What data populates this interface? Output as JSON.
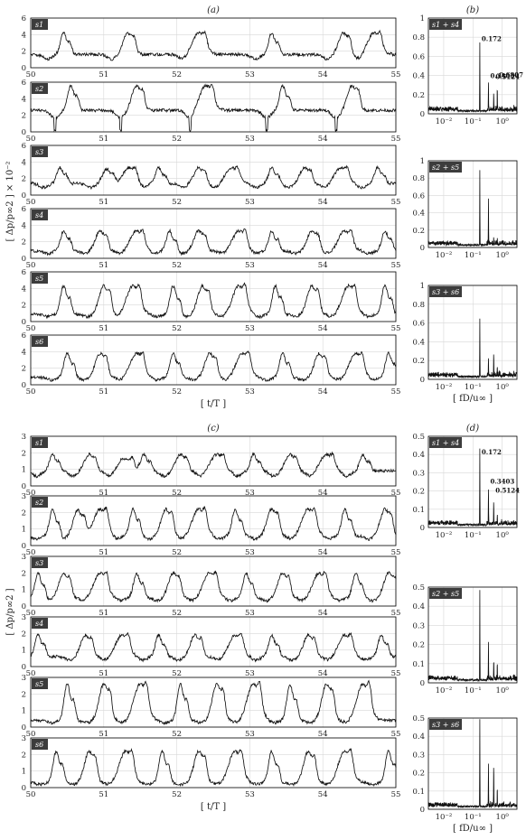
{
  "chart_data": [
    {
      "panel": "a",
      "title": "(a)",
      "type": "line",
      "xlabel": "[ t/T ]",
      "ylabel": "[ Δp/p∞2 ] × 10⁻²",
      "xlim": [
        50,
        55
      ],
      "xticks": [
        50,
        51,
        52,
        53,
        54,
        55
      ],
      "grid": true,
      "series": [
        {
          "name": "s1",
          "ylim": [
            0,
            6
          ],
          "yticks": [
            0,
            2,
            4,
            6
          ],
          "peak_times": [
            50.45,
            51.33,
            52.3,
            53.3,
            54.28,
            54.7
          ],
          "base": 1.6,
          "peak": 4.2
        },
        {
          "name": "s2",
          "ylim": [
            0,
            6
          ],
          "yticks": [
            0,
            2,
            4,
            6
          ],
          "peak_times": [
            50.55,
            51.45,
            52.4,
            53.45,
            54.4
          ],
          "base": 2.6,
          "peak": 5.6,
          "dips_to": 0.0
        },
        {
          "name": "s3",
          "ylim": [
            0,
            6
          ],
          "yticks": [
            0,
            2,
            4,
            6
          ],
          "peak_times": [
            50.4,
            51.05,
            51.35,
            51.75,
            52.3,
            52.75,
            53.3,
            53.75,
            54.25,
            54.75
          ],
          "base": 1.4,
          "peak": 3.3
        },
        {
          "name": "s4",
          "ylim": [
            0,
            6
          ],
          "yticks": [
            0,
            2,
            4,
            6
          ],
          "peak_times": [
            50.45,
            50.95,
            51.45,
            51.9,
            52.3,
            52.85,
            53.3,
            53.85,
            54.3,
            54.85
          ],
          "base": 0.9,
          "peak": 3.3
        },
        {
          "name": "s5",
          "ylim": [
            0,
            6
          ],
          "yticks": [
            0,
            2,
            4,
            6
          ],
          "peak_times": [
            50.45,
            51.0,
            51.4,
            51.95,
            52.35,
            52.85,
            53.35,
            53.85,
            54.35,
            54.85
          ],
          "base": 0.9,
          "peak": 4.3
        },
        {
          "name": "s6",
          "ylim": [
            0,
            6
          ],
          "yticks": [
            0,
            2,
            4,
            6
          ],
          "peak_times": [
            50.5,
            50.95,
            51.45,
            51.95,
            52.45,
            52.9,
            53.45,
            53.95,
            54.45,
            54.9
          ],
          "base": 0.9,
          "peak": 3.8
        }
      ]
    },
    {
      "panel": "b",
      "title": "(b)",
      "type": "line",
      "xscale": "log",
      "xlabel": "[ fD/u∞ ]",
      "xticks": [
        "10⁻²",
        "10⁻¹",
        "10⁰"
      ],
      "ylim": [
        0,
        1
      ],
      "yticks": [
        0,
        0.2,
        0.4,
        0.6,
        0.8,
        1
      ],
      "grid": true,
      "series": [
        {
          "name": "s1 + s4",
          "peaks": [
            [
              0.172,
              0.72
            ],
            [
              0.3403,
              0.28
            ],
            [
              0.5124,
              0.18
            ],
            [
              0.6807,
              0.24
            ]
          ],
          "peak_labels": [
            "0.172",
            "0.3403",
            "0.5124",
            "0.6807"
          ]
        },
        {
          "name": "s2 + s5",
          "peaks": [
            [
              0.172,
              0.87
            ],
            [
              0.3403,
              0.49
            ],
            [
              0.5124,
              0.08
            ],
            [
              0.6807,
              0.07
            ]
          ]
        },
        {
          "name": "s3 + s6",
          "peaks": [
            [
              0.172,
              0.62
            ],
            [
              0.3403,
              0.2
            ],
            [
              0.5124,
              0.25
            ],
            [
              0.6807,
              0.1
            ]
          ]
        }
      ]
    },
    {
      "panel": "c",
      "title": "(c)",
      "type": "line",
      "xlabel": "[ t/T ]",
      "ylabel": "[ Δp/p∞2 ]",
      "xlim": [
        50,
        55
      ],
      "xticks": [
        50,
        51,
        52,
        53,
        54,
        55
      ],
      "grid": true,
      "series": [
        {
          "name": "s1",
          "ylim": [
            0,
            3
          ],
          "yticks": [
            0,
            1,
            2,
            3
          ],
          "peak_times": [
            50.3,
            50.8,
            51.3,
            51.55,
            52.05,
            52.55,
            53.05,
            53.55,
            54.05,
            54.55
          ],
          "base": 0.9,
          "peak": 1.9
        },
        {
          "name": "s2",
          "ylim": [
            0,
            3
          ],
          "yticks": [
            0,
            1,
            2,
            3
          ],
          "peak_times": [
            50.3,
            50.65,
            50.95,
            51.4,
            51.85,
            52.3,
            52.8,
            53.3,
            53.8,
            54.3,
            54.85
          ],
          "base": 0.6,
          "peak": 2.2
        },
        {
          "name": "s3",
          "ylim": [
            0,
            3
          ],
          "yticks": [
            0,
            1,
            2,
            3
          ],
          "peak_times": [
            50.1,
            50.45,
            50.95,
            51.45,
            51.95,
            52.45,
            52.95,
            53.45,
            53.95,
            54.45,
            54.9
          ],
          "base": 0.5,
          "peak": 2.0
        },
        {
          "name": "s4",
          "ylim": [
            0,
            3
          ],
          "yticks": [
            0,
            1,
            2,
            3
          ],
          "peak_times": [
            50.1,
            50.75,
            51.25,
            51.75,
            52.25,
            52.8,
            53.3,
            53.8,
            54.3,
            54.8
          ],
          "base": 0.6,
          "peak": 1.9
        },
        {
          "name": "s5",
          "ylim": [
            0,
            3
          ],
          "yticks": [
            0,
            1,
            2,
            3
          ],
          "peak_times": [
            50.5,
            51.0,
            51.5,
            52.05,
            52.55,
            53.05,
            53.55,
            54.05,
            54.55
          ],
          "base": 0.4,
          "peak": 2.6
        },
        {
          "name": "s6",
          "ylim": [
            0,
            3
          ],
          "yticks": [
            0,
            1,
            2,
            3
          ],
          "peak_times": [
            50.35,
            50.8,
            51.3,
            51.8,
            52.3,
            52.8,
            53.3,
            53.8,
            54.3,
            54.9
          ],
          "base": 0.3,
          "peak": 2.2
        }
      ]
    },
    {
      "panel": "d",
      "title": "(d)",
      "type": "line",
      "xscale": "log",
      "xlabel": "[ fD/u∞ ]",
      "xticks": [
        "10⁻²",
        "10⁻¹",
        "10⁰"
      ],
      "ylim": [
        0,
        0.5
      ],
      "yticks": [
        0,
        0.1,
        0.2,
        0.3,
        0.4,
        0.5
      ],
      "grid": true,
      "series": [
        {
          "name": "s1 + s4",
          "peaks": [
            [
              0.172,
              0.42
            ],
            [
              0.3403,
              0.19
            ],
            [
              0.5124,
              0.13
            ],
            [
              0.6807,
              0.05
            ]
          ],
          "peak_labels": [
            "0.172",
            "0.3403",
            "0.5124"
          ]
        },
        {
          "name": "s2 + s5",
          "peaks": [
            [
              0.172,
              0.47
            ],
            [
              0.3403,
              0.19
            ],
            [
              0.5124,
              0.1
            ],
            [
              0.6807,
              0.08
            ]
          ]
        },
        {
          "name": "s3 + s6",
          "peaks": [
            [
              0.172,
              0.48
            ],
            [
              0.3403,
              0.23
            ],
            [
              0.5124,
              0.24
            ],
            [
              0.6807,
              0.09
            ]
          ]
        }
      ]
    }
  ]
}
